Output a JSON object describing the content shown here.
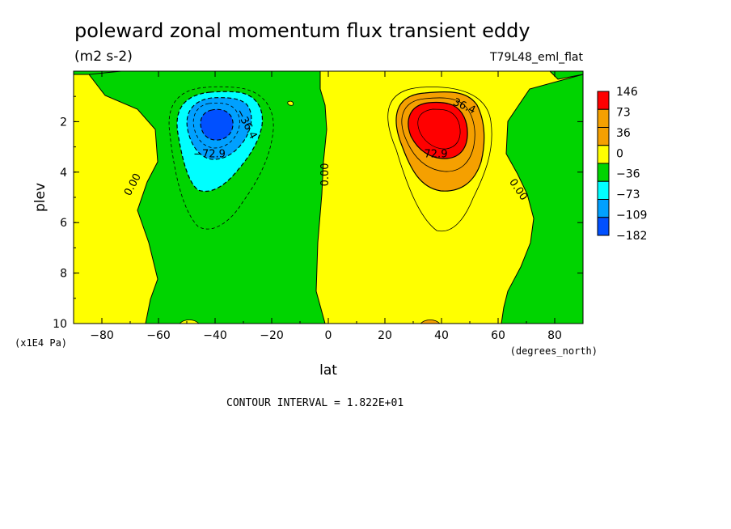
{
  "chart_data": {
    "type": "heatmap",
    "subtype": "filled-contour",
    "title": "poleward zonal momentum flux transient eddy",
    "units": "(m2 s-2)",
    "run_label": "T79L48_eml_flat",
    "xlabel": "lat",
    "x_units": "(degrees_north)",
    "ylabel": "plev",
    "y_units": "(x1E4 Pa)",
    "xlim": [
      -90,
      90
    ],
    "ylim": [
      10,
      0
    ],
    "x_ticks": [
      -80,
      -60,
      -40,
      -20,
      0,
      20,
      40,
      60,
      80
    ],
    "y_ticks": [
      2,
      4,
      6,
      8,
      10
    ],
    "contour_interval_text": "CONTOUR INTERVAL = 1.822E+01",
    "contour_labels": [
      {
        "text": "0.00",
        "lat": -69,
        "plev": 4.5,
        "angle": -62
      },
      {
        "text": "0.00",
        "lat": -1,
        "plev": 4.1,
        "angle": -90
      },
      {
        "text": "0.00",
        "lat": 67,
        "plev": 4.7,
        "angle": 56
      },
      {
        "text": "-36.4",
        "lat": -29,
        "plev": 2.1,
        "angle": 62
      },
      {
        "text": "-72.9",
        "lat": -42,
        "plev": 3.3,
        "angle": 0
      },
      {
        "text": "36.4",
        "lat": 48,
        "plev": 1.4,
        "angle": 24
      },
      {
        "text": "72.9",
        "lat": 38,
        "plev": 3.3,
        "angle": 0
      }
    ],
    "features": [
      {
        "name": "southern-minimum",
        "lat": -40,
        "plev": 2.4,
        "approx_min": -182
      },
      {
        "name": "northern-maximum",
        "lat": 38,
        "plev": 2.4,
        "approx_max": 146
      }
    ],
    "colorbar": {
      "labels": [
        "146",
        "73",
        "36",
        "0",
        "-36",
        "-73",
        "-109",
        "-182"
      ],
      "colors": [
        "#ff0000",
        "#f5a000",
        "#f5a000",
        "#ffff00",
        "#00d400",
        "#00ffff",
        "#00a0ff",
        "#0050ff"
      ],
      "label_display": [
        "146",
        "73",
        "36",
        "0",
        "−36",
        "−73",
        "−109",
        "−182"
      ]
    },
    "palette": {
      "red": "#ff0000",
      "orange": "#f5a000",
      "yellow": "#ffff00",
      "green": "#00d400",
      "cyan": "#00ffff",
      "lightblue": "#00a0ff",
      "blue": "#0050ff"
    }
  }
}
